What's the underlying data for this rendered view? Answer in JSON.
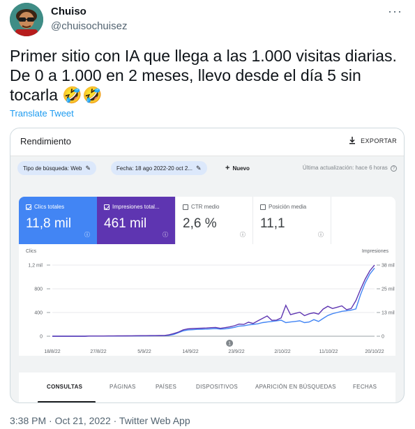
{
  "author": {
    "name": "Chuiso",
    "handle": "@chuisochuisez"
  },
  "tweet": {
    "text": "Primer sitio con IA que llega a las 1.000 visitas diarias. De 0 a 1.000 en 2 meses, llevo desde el día 5 sin tocarla 🤣🤣",
    "translate_label": "Translate Tweet",
    "timestamp": "3:38 PM · Oct 21, 2022 · Twitter Web App"
  },
  "card": {
    "title": "Rendimiento",
    "export_label": "EXPORTAR",
    "filters": {
      "search_type": "Tipo de búsqueda: Web",
      "date": "Fecha: 18 ago 2022-20 oct 2...",
      "new_label": "Nuevo",
      "last_update": "Última actualización: hace 6 horas"
    },
    "metrics": [
      {
        "label": "Clics totales",
        "value": "11,8 mil",
        "checked": true,
        "color": "#4285f4"
      },
      {
        "label": "Impresiones total...",
        "value": "461 mil",
        "checked": true,
        "color": "#5e35b1"
      },
      {
        "label": "CTR medio",
        "value": "2,6 %",
        "checked": false
      },
      {
        "label": "Posición media",
        "value": "11,1",
        "checked": false
      }
    ],
    "tabs": [
      "CONSULTAS",
      "PÁGINAS",
      "PAÍSES",
      "DISPOSITIVOS",
      "APARICIÓN EN BÚSQUEDAS",
      "FECHAS"
    ],
    "active_tab": "CONSULTAS"
  },
  "chart_data": {
    "type": "line",
    "left_axis_label": "Clics",
    "right_axis_label": "Impresiones",
    "left_ticks": [
      "1,2 mil",
      "800",
      "400",
      "0"
    ],
    "right_ticks": [
      "38 mil",
      "25 mil",
      "13 mil",
      "0"
    ],
    "left_ylim": [
      0,
      1200
    ],
    "right_ylim": [
      0,
      38000
    ],
    "x_labels": [
      "18/8/22",
      "27/8/22",
      "5/9/22",
      "14/9/22",
      "23/9/22",
      "2/10/22",
      "11/10/22",
      "20/10/22"
    ],
    "annotation": "1",
    "series": [
      {
        "name": "Clics",
        "axis": "left",
        "color": "#4285f4",
        "values": [
          0,
          0,
          0,
          0,
          0,
          0,
          0,
          0,
          2,
          2,
          3,
          3,
          3,
          3,
          4,
          4,
          5,
          5,
          6,
          6,
          7,
          7,
          8,
          8,
          10,
          15,
          30,
          60,
          90,
          105,
          110,
          115,
          118,
          120,
          125,
          128,
          120,
          125,
          135,
          150,
          170,
          175,
          190,
          200,
          210,
          230,
          240,
          250,
          260,
          270,
          230,
          240,
          250,
          260,
          230,
          240,
          280,
          250,
          300,
          350,
          380,
          400,
          420,
          430,
          440,
          460,
          700,
          900,
          1050,
          1150
        ]
      },
      {
        "name": "Impresiones",
        "axis": "right",
        "color": "#5e35b1",
        "values": [
          0,
          0,
          0,
          0,
          0,
          0,
          0,
          0,
          100,
          100,
          120,
          130,
          150,
          160,
          170,
          180,
          200,
          220,
          250,
          280,
          300,
          320,
          340,
          360,
          400,
          800,
          1400,
          2200,
          3400,
          3900,
          4100,
          4200,
          4300,
          4400,
          4600,
          4700,
          4200,
          4600,
          5000,
          5600,
          6500,
          6300,
          7500,
          6800,
          8200,
          9500,
          10800,
          8500,
          8600,
          9800,
          16500,
          11500,
          12200,
          12800,
          11000,
          12000,
          12500,
          11800,
          14500,
          16000,
          14800,
          15500,
          16200,
          14200,
          14800,
          19000,
          25000,
          30500,
          35000,
          38000
        ]
      }
    ]
  }
}
